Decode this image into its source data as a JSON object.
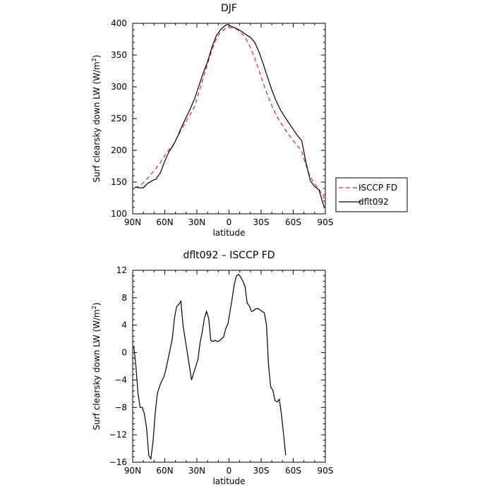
{
  "chart_data": [
    {
      "type": "line",
      "title": "DJF",
      "xlabel": "latitude",
      "ylabel_main": "Surf clearsky down LW (W/m",
      "ylabel_sup": "2",
      "ylabel_end": ")",
      "xlim": [
        90,
        -90
      ],
      "ylim": [
        100,
        400
      ],
      "xticks": [
        {
          "value": 90,
          "label": "90N"
        },
        {
          "value": 60,
          "label": "60N"
        },
        {
          "value": 30,
          "label": "30N"
        },
        {
          "value": 0,
          "label": "0"
        },
        {
          "value": -30,
          "label": "30S"
        },
        {
          "value": -60,
          "label": "60S"
        },
        {
          "value": -90,
          "label": "90S"
        }
      ],
      "yticks": [
        {
          "value": 100,
          "label": "100"
        },
        {
          "value": 150,
          "label": "150"
        },
        {
          "value": 200,
          "label": "200"
        },
        {
          "value": 250,
          "label": "250"
        },
        {
          "value": 300,
          "label": "300"
        },
        {
          "value": 350,
          "label": "350"
        },
        {
          "value": 400,
          "label": "400"
        }
      ],
      "legend_position": "outside-right",
      "series": [
        {
          "name": "ISCCP FD",
          "color": "#e8202a",
          "dash": "dashed",
          "points": [
            [
              88,
              141
            ],
            [
              84,
              144
            ],
            [
              80,
              149
            ],
            [
              76,
              156
            ],
            [
              72,
              164
            ],
            [
              68,
              172
            ],
            [
              64,
              181
            ],
            [
              60,
              192
            ],
            [
              56,
              201
            ],
            [
              52,
              209
            ],
            [
              48,
              222
            ],
            [
              44,
              234
            ],
            [
              40,
              246
            ],
            [
              36,
              257
            ],
            [
              32,
              270
            ],
            [
              28,
              292
            ],
            [
              24,
              314
            ],
            [
              20,
              336
            ],
            [
              16,
              358
            ],
            [
              12,
              375
            ],
            [
              8,
              386
            ],
            [
              4,
              391
            ],
            [
              0,
              393
            ],
            [
              -4,
              393
            ],
            [
              -8,
              390
            ],
            [
              -12,
              384
            ],
            [
              -16,
              375
            ],
            [
              -20,
              362
            ],
            [
              -24,
              345
            ],
            [
              -28,
              326
            ],
            [
              -32,
              306
            ],
            [
              -36,
              287
            ],
            [
              -40,
              270
            ],
            [
              -44,
              256
            ],
            [
              -48,
              244
            ],
            [
              -52,
              234
            ],
            [
              -56,
              224
            ],
            [
              -60,
              215
            ],
            [
              -64,
              207
            ],
            [
              -68,
              198
            ],
            [
              -72,
              176
            ],
            [
              -76,
              158
            ],
            [
              -80,
              147
            ],
            [
              -84,
              139
            ],
            [
              -88,
              127
            ],
            [
              -89,
              124
            ]
          ]
        },
        {
          "name": "dflt092",
          "color": "#000000",
          "dash": "solid",
          "points": [
            [
              88,
              142
            ],
            [
              84,
              141
            ],
            [
              80,
              141
            ],
            [
              76,
              148
            ],
            [
              72,
              152
            ],
            [
              68,
              155
            ],
            [
              64,
              165
            ],
            [
              60,
              183
            ],
            [
              56,
              198
            ],
            [
              52,
              208
            ],
            [
              48,
              222
            ],
            [
              44,
              238
            ],
            [
              40,
              252
            ],
            [
              36,
              266
            ],
            [
              32,
              282
            ],
            [
              28,
              302
            ],
            [
              24,
              322
            ],
            [
              20,
              340
            ],
            [
              16,
              362
            ],
            [
              12,
              380
            ],
            [
              8,
              390
            ],
            [
              4,
              396
            ],
            [
              2,
              398
            ],
            [
              0,
              397
            ],
            [
              -4,
              394
            ],
            [
              -8,
              391
            ],
            [
              -12,
              387
            ],
            [
              -16,
              382
            ],
            [
              -20,
              378
            ],
            [
              -24,
              370
            ],
            [
              -28,
              355
            ],
            [
              -32,
              336
            ],
            [
              -36,
              315
            ],
            [
              -40,
              295
            ],
            [
              -44,
              278
            ],
            [
              -48,
              264
            ],
            [
              -52,
              253
            ],
            [
              -56,
              243
            ],
            [
              -60,
              233
            ],
            [
              -64,
              223
            ],
            [
              -68,
              215
            ],
            [
              -72,
              180
            ],
            [
              -76,
              152
            ],
            [
              -80,
              143
            ],
            [
              -84,
              138
            ],
            [
              -88,
              115
            ],
            [
              -89,
              111
            ]
          ]
        }
      ]
    },
    {
      "type": "line",
      "title": "dflt092 – ISCCP FD",
      "xlabel": "latitude",
      "ylabel_main": "Surf clearsky down LW (W/m",
      "ylabel_sup": "2",
      "ylabel_end": ")",
      "xlim": [
        90,
        -90
      ],
      "ylim": [
        -16,
        12
      ],
      "xticks": [
        {
          "value": 90,
          "label": "90N"
        },
        {
          "value": 60,
          "label": "60N"
        },
        {
          "value": 30,
          "label": "30N"
        },
        {
          "value": 0,
          "label": "0"
        },
        {
          "value": -30,
          "label": "30S"
        },
        {
          "value": -60,
          "label": "60S"
        },
        {
          "value": -90,
          "label": "90S"
        }
      ],
      "yticks": [
        {
          "value": 12,
          "label": "12"
        },
        {
          "value": 8,
          "label": "8"
        },
        {
          "value": 4,
          "label": "4"
        },
        {
          "value": 0,
          "label": "0"
        },
        {
          "value": -4,
          "label": "−4"
        },
        {
          "value": -8,
          "label": "−8"
        },
        {
          "value": -12,
          "label": "−12"
        },
        {
          "value": -16,
          "label": "−16"
        }
      ],
      "series": [
        {
          "color": "#000000",
          "dash": "solid",
          "points": [
            [
              89,
              1
            ],
            [
              87,
              -2
            ],
            [
              85,
              -6
            ],
            [
              83,
              -8
            ],
            [
              81,
              -8
            ],
            [
              79,
              -9
            ],
            [
              77,
              -11
            ],
            [
              75,
              -15
            ],
            [
              73,
              -15.5
            ],
            [
              71,
              -13
            ],
            [
              69,
              -9
            ],
            [
              67,
              -6
            ],
            [
              65,
              -5
            ],
            [
              63,
              -4.2
            ],
            [
              61,
              -3.6
            ],
            [
              59,
              -2.5
            ],
            [
              57,
              -1
            ],
            [
              55,
              0.5
            ],
            [
              53,
              2
            ],
            [
              51,
              5
            ],
            [
              49,
              6.7
            ],
            [
              47,
              7
            ],
            [
              45,
              7.5
            ],
            [
              43,
              4
            ],
            [
              41,
              2
            ],
            [
              39,
              0
            ],
            [
              37,
              -2
            ],
            [
              35,
              -4
            ],
            [
              33,
              -3
            ],
            [
              31,
              -2
            ],
            [
              29,
              -1
            ],
            [
              27,
              1.5
            ],
            [
              25,
              3
            ],
            [
              23,
              5
            ],
            [
              21,
              6
            ],
            [
              19,
              5
            ],
            [
              17,
              1.8
            ],
            [
              15,
              1.6
            ],
            [
              13,
              1.8
            ],
            [
              11,
              1.6
            ],
            [
              9,
              1.7
            ],
            [
              7,
              2
            ],
            [
              5,
              2.3
            ],
            [
              3,
              3.5
            ],
            [
              1,
              4.2
            ],
            [
              -1,
              6
            ],
            [
              -3,
              8
            ],
            [
              -5,
              10
            ],
            [
              -7,
              11.2
            ],
            [
              -9,
              11.4
            ],
            [
              -11,
              11
            ],
            [
              -13,
              10.4
            ],
            [
              -15,
              9.6
            ],
            [
              -17,
              7.2
            ],
            [
              -19,
              6.8
            ],
            [
              -21,
              6
            ],
            [
              -23,
              6.1
            ],
            [
              -25,
              6.4
            ],
            [
              -27,
              6.4
            ],
            [
              -29,
              6.2
            ],
            [
              -31,
              6
            ],
            [
              -33,
              5.8
            ],
            [
              -35,
              4
            ],
            [
              -37,
              -2
            ],
            [
              -39,
              -5
            ],
            [
              -41,
              -5.5
            ],
            [
              -43,
              -7
            ],
            [
              -45,
              -7.2
            ],
            [
              -47,
              -6.8
            ],
            [
              -49,
              -9
            ],
            [
              -51,
              -12
            ],
            [
              -53,
              -15
            ]
          ]
        }
      ]
    }
  ]
}
